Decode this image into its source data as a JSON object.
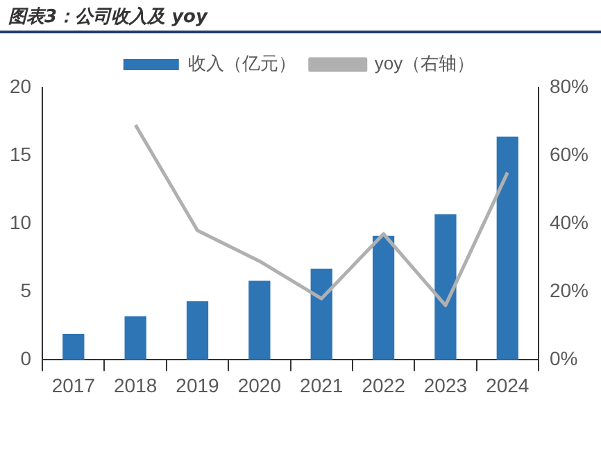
{
  "chart_data": {
    "type": "bar",
    "title": "图表3：公司收入及 yoy",
    "categories": [
      "2017",
      "2018",
      "2019",
      "2020",
      "2021",
      "2022",
      "2023",
      "2024"
    ],
    "series": [
      {
        "name": "收入（亿元）",
        "color": "#2e75b6",
        "values": [
          1.9,
          3.2,
          4.3,
          5.8,
          6.7,
          9.1,
          10.7,
          16.4
        ]
      },
      {
        "name": "yoy（右轴）",
        "type": "line",
        "axis": "y2",
        "color": "#b0b0b0",
        "values": [
          null,
          69,
          38,
          29,
          18,
          37,
          16,
          55
        ]
      }
    ],
    "ylim": [
      0,
      20
    ],
    "yticks": [
      0,
      5,
      10,
      15,
      20
    ],
    "y2lim": [
      0,
      80
    ],
    "y2ticks": [
      {
        "value": 0,
        "label": "0%"
      },
      {
        "value": 20,
        "label": "20%"
      },
      {
        "value": 40,
        "label": "40%"
      },
      {
        "value": 60,
        "label": "60%"
      },
      {
        "value": 80,
        "label": "80%"
      }
    ],
    "grid": false,
    "legend": "top",
    "marker": "none"
  }
}
